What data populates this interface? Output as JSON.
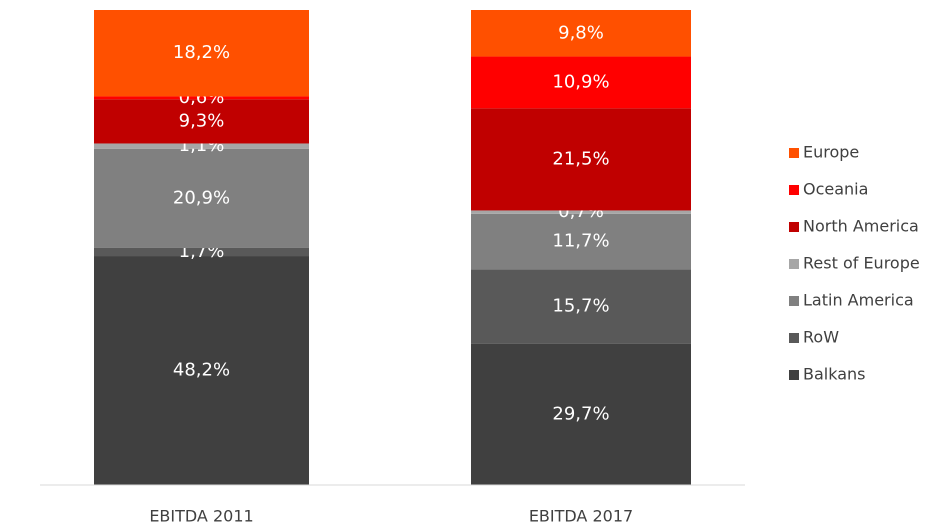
{
  "chart_data": {
    "type": "stacked_bar",
    "categories": [
      "EBITDA 2011",
      "EBITDA 2017"
    ],
    "ylim": [
      0,
      100
    ],
    "series": [
      {
        "name": "Balkans",
        "color": "#404040",
        "values": [
          48.2,
          29.7
        ],
        "value_labels": [
          "48,2%",
          "29,7%"
        ]
      },
      {
        "name": "RoW",
        "color": "#595959",
        "values": [
          1.7,
          15.7
        ],
        "value_labels": [
          "1,7%",
          "15,7%"
        ]
      },
      {
        "name": "Latin America",
        "color": "#808080",
        "values": [
          20.9,
          11.7
        ],
        "value_labels": [
          "20,9%",
          "11,7%"
        ]
      },
      {
        "name": "Rest of Europe",
        "color": "#a6a6a6",
        "values": [
          1.1,
          0.7
        ],
        "value_labels": [
          "1,1%",
          "0,7%"
        ]
      },
      {
        "name": "North America",
        "color": "#c00000",
        "values": [
          9.3,
          21.5
        ],
        "value_labels": [
          "9,3%",
          "21,5%"
        ]
      },
      {
        "name": "Oceania",
        "color": "#ff0000",
        "values": [
          0.6,
          10.9
        ],
        "value_labels": [
          "0,6%",
          "10,9%"
        ]
      },
      {
        "name": "Europe",
        "color": "#ff5000",
        "values": [
          18.2,
          9.8
        ],
        "value_labels": [
          "18,2%",
          "9,8%"
        ]
      }
    ],
    "legend": "right"
  }
}
